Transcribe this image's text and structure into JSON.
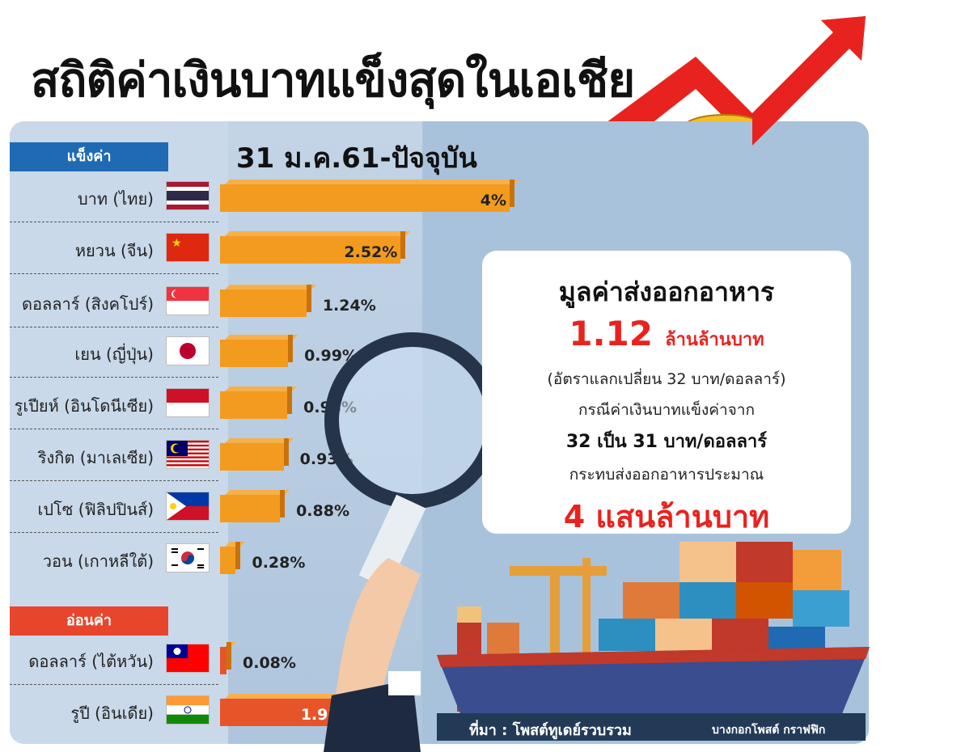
{
  "title": "สถิติค่าเงินบาทแข็งสุดในเอเชีย",
  "chart_data": {
    "type": "bar",
    "title": "31 ม.ค.61-ปัจจุบัน",
    "groups": [
      {
        "label": "แข็งค่า",
        "color": "#1f6ab3",
        "bar_color": "#f39b1e"
      },
      {
        "label": "อ่อนค่า",
        "color": "#e8462c",
        "bar_color": "#e8542a"
      }
    ],
    "categories": [
      "บาท (ไทย)",
      "หยวน (จีน)",
      "ดอลลาร์ (สิงคโปร์)",
      "เยน (ญี่ปุ่น)",
      "รูเปียห์ (อินโดนีเซีย)",
      "ริงกิต (มาเลเซีย)",
      "เปโซ (ฟิลิปปินส์)",
      "วอน (เกาหลีใต้)",
      "ดอลลาร์ (ไต้หวัน)",
      "รูปี (อินเดีย)"
    ],
    "values": [
      4,
      2.52,
      1.24,
      0.99,
      0.98,
      0.93,
      0.88,
      0.28,
      0.08,
      1.93
    ],
    "value_labels": [
      "4%",
      "2.52%",
      "1.24%",
      "0.99%",
      "0.98%",
      "0.93%",
      "0.88%",
      "0.28%",
      "0.08%",
      "1.93%"
    ],
    "group_index": [
      0,
      0,
      0,
      0,
      0,
      0,
      0,
      0,
      1,
      1
    ],
    "flags": [
      "thailand-flag",
      "china-flag",
      "singapore-flag",
      "japan-flag",
      "indonesia-flag",
      "malaysia-flag",
      "philippines-flag",
      "south-korea-flag",
      "taiwan-flag",
      "india-flag"
    ]
  },
  "card": {
    "heading": "มูลค่าส่งออกอาหาร",
    "amount_number": "1.12",
    "amount_unit": "ล้านล้านบาท",
    "rate_note": "(อัตราแลกเปลี่ยน 32 บาท/ดอลลาร์)",
    "case_line": "กรณีค่าเงินบาทแข็งค่าจาก",
    "case_change": "32 เป็น 31 บาท/ดอลลาร์",
    "impact_line": "กระทบส่งออกอาหารประมาณ",
    "impact_value": "4 แสนล้านบาท"
  },
  "footer": {
    "source": "ที่มา : โพสต์ทูเดย์รวบรวม",
    "credit": "บางกอกโพสต์ กราฟฟิก"
  },
  "colors": {
    "accent_red": "#e8231f",
    "bar_orange": "#f39b1e",
    "panel_blue": "#a9c2dc"
  }
}
